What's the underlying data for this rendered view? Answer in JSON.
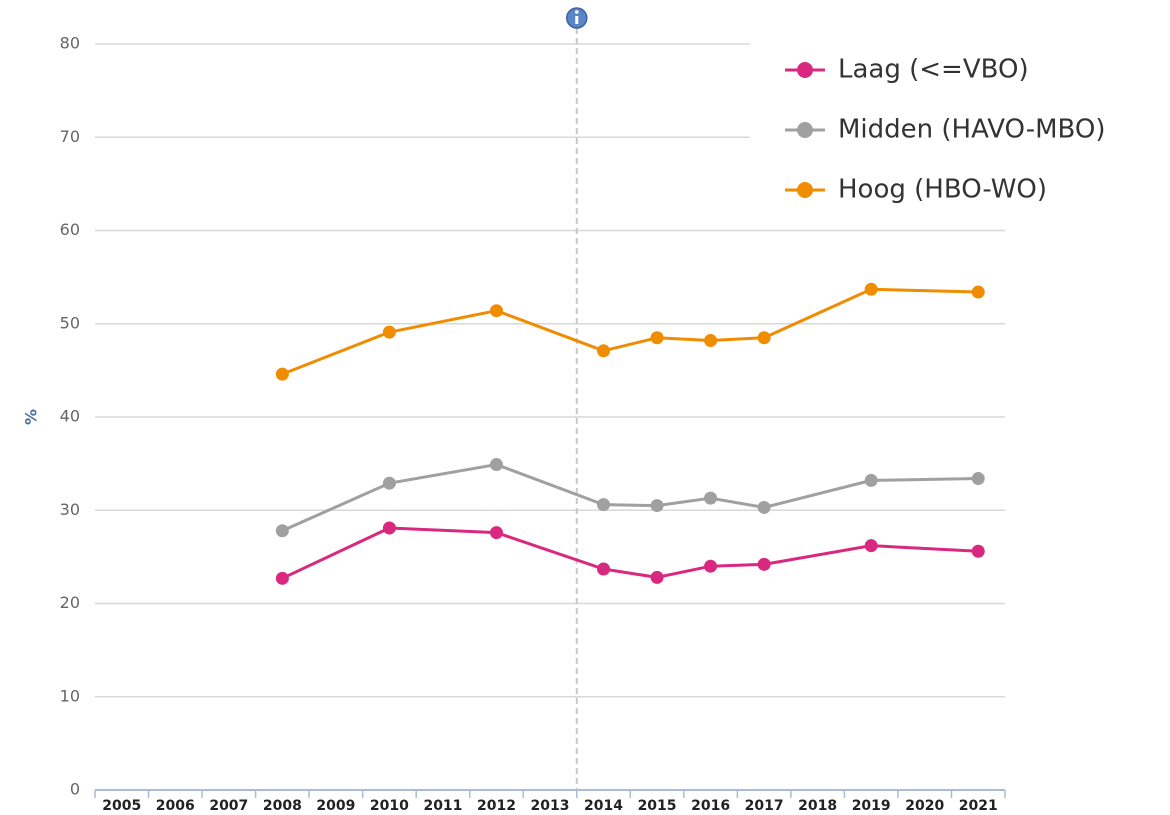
{
  "chart_data": {
    "type": "line",
    "y_label": "%",
    "x": [
      2008,
      2010,
      2012,
      2014,
      2015,
      2016,
      2017,
      2019,
      2021
    ],
    "series": [
      {
        "name": "Laag (<=VBO)",
        "color": "#d9287f",
        "values": [
          22.7,
          28.1,
          27.6,
          23.7,
          22.8,
          24.0,
          24.2,
          26.2,
          25.6
        ]
      },
      {
        "name": "Midden (HAVO-MBO)",
        "color": "#a0a0a0",
        "values": [
          27.8,
          32.9,
          34.9,
          30.6,
          30.5,
          31.3,
          30.3,
          33.2,
          33.4
        ]
      },
      {
        "name": "Hoog (HBO-WO)",
        "color": "#f08c00",
        "values": [
          44.6,
          49.1,
          51.4,
          47.1,
          48.5,
          48.2,
          48.5,
          53.7,
          53.4
        ]
      }
    ],
    "xlim": [
      2004.5,
      2021.5
    ],
    "xticks": [
      2005,
      2006,
      2007,
      2008,
      2009,
      2010,
      2011,
      2012,
      2013,
      2014,
      2015,
      2016,
      2017,
      2018,
      2019,
      2020,
      2021
    ],
    "ylim": [
      0,
      80
    ],
    "yticks": [
      0,
      10,
      20,
      30,
      40,
      50,
      60,
      70,
      80
    ],
    "vline_x": 2013.5,
    "grid": true,
    "legend": "top-right"
  }
}
